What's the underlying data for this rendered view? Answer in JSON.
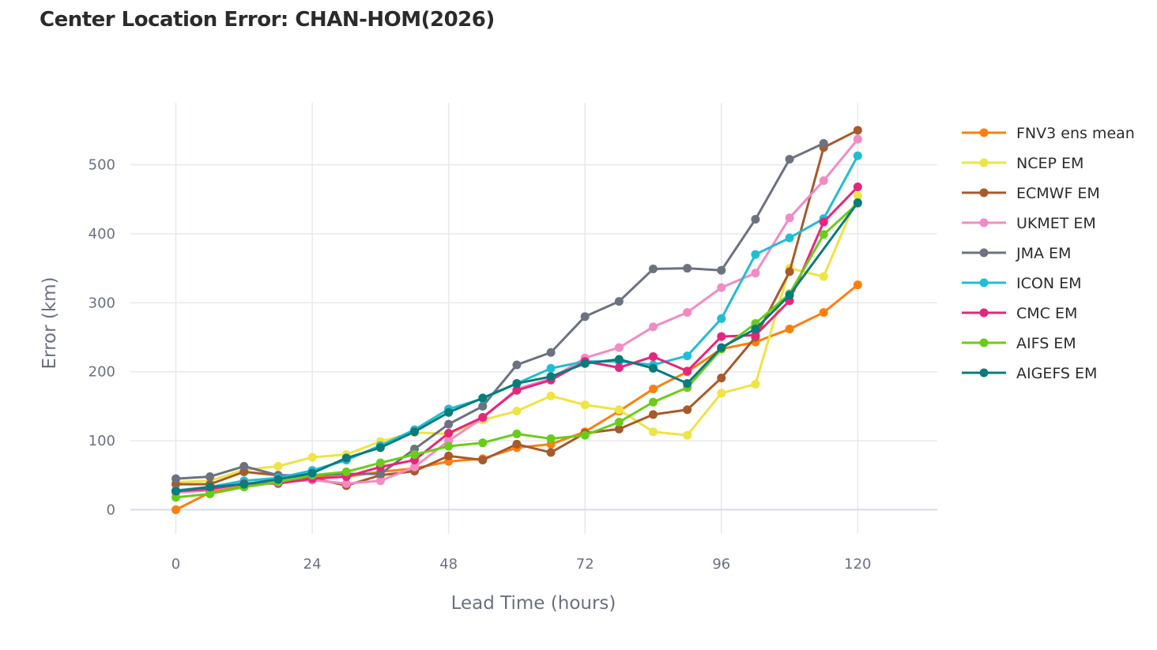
{
  "chart_data": {
    "type": "line",
    "title": "Center Location Error: CHAN-HOM(2026)",
    "xlabel": "Lead Time (hours)",
    "ylabel": "Error (km)",
    "x_ticks": [
      0,
      24,
      48,
      72,
      96,
      120
    ],
    "y_ticks": [
      0,
      100,
      200,
      300,
      400,
      500
    ],
    "xlim": [
      -8,
      134
    ],
    "ylim": [
      -35,
      590
    ],
    "grid": true,
    "legend_position": "right",
    "x": [
      0,
      6,
      12,
      18,
      24,
      30,
      36,
      42,
      48,
      54,
      60,
      66,
      72,
      78,
      84,
      90,
      96,
      102,
      108,
      114,
      120
    ],
    "series": [
      {
        "name": "FNV3 ens mean",
        "color": "#ff7f0e",
        "values": [
          0,
          25,
          35,
          40,
          47,
          48,
          55,
          60,
          70,
          74,
          90,
          95,
          113,
          143,
          175,
          200,
          233,
          243,
          262,
          286,
          326
        ]
      },
      {
        "name": "NCEP EM",
        "color": "#eee443",
        "values": [
          40,
          42,
          58,
          63,
          76,
          80,
          99,
          112,
          110,
          130,
          143,
          165,
          152,
          145,
          113,
          108,
          169,
          182,
          350,
          338,
          455
        ]
      },
      {
        "name": "ECMWF EM",
        "color": "#a85a2a",
        "values": [
          37,
          37,
          55,
          50,
          46,
          35,
          50,
          56,
          78,
          72,
          95,
          83,
          111,
          117,
          138,
          145,
          191,
          250,
          345,
          525,
          550
        ]
      },
      {
        "name": "UKMET EM",
        "color": "#f28bc4",
        "values": [
          25,
          28,
          38,
          40,
          43,
          38,
          42,
          62,
          100,
          133,
          175,
          190,
          220,
          235,
          265,
          286,
          322,
          343,
          423,
          477,
          537
        ]
      },
      {
        "name": "JMA EM",
        "color": "#6c7280",
        "values": [
          45,
          48,
          63,
          50,
          50,
          52,
          52,
          88,
          124,
          150,
          210,
          228,
          280,
          302,
          349,
          350,
          347,
          421,
          508,
          531,
          null
        ]
      },
      {
        "name": "ICON EM",
        "color": "#21bdd4",
        "values": [
          28,
          33,
          42,
          46,
          57,
          72,
          93,
          116,
          146,
          161,
          183,
          205,
          215,
          215,
          210,
          223,
          277,
          370,
          394,
          422,
          513
        ]
      },
      {
        "name": "CMC EM",
        "color": "#e6267c",
        "values": [
          27,
          30,
          38,
          38,
          45,
          48,
          62,
          72,
          111,
          134,
          173,
          188,
          215,
          206,
          222,
          201,
          251,
          253,
          303,
          417,
          468
        ]
      },
      {
        "name": "AIFS EM",
        "color": "#6acc1a",
        "values": [
          18,
          23,
          33,
          40,
          50,
          55,
          68,
          80,
          92,
          97,
          110,
          103,
          108,
          127,
          156,
          177,
          233,
          270,
          313,
          399,
          444
        ]
      },
      {
        "name": "AIGEFS EM",
        "color": "#0b7b7b",
        "values": [
          27,
          33,
          37,
          44,
          53,
          75,
          90,
          113,
          141,
          162,
          183,
          193,
          212,
          218,
          205,
          183,
          235,
          262,
          311,
          null,
          445
        ]
      }
    ]
  }
}
